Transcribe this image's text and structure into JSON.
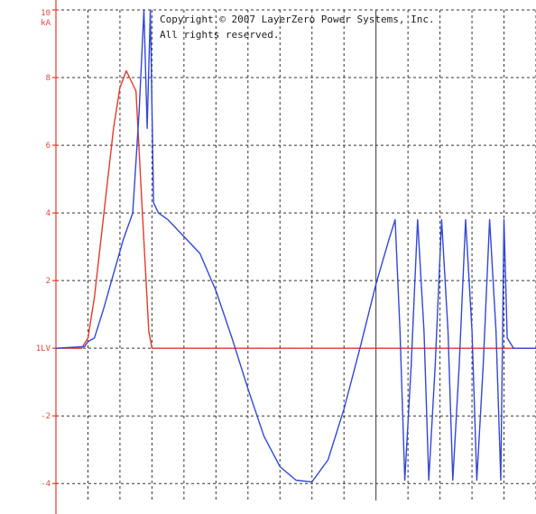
{
  "copyright": {
    "line1": "Copyright © 2007 LayerZero Power Systems, Inc.",
    "line2": "All rights reserved."
  },
  "colors": {
    "voltage": "#e53a2c",
    "current": "#3447d6",
    "grid": "#333333",
    "tick_labels": "#e0493e"
  },
  "chart_data": {
    "type": "line",
    "title": "",
    "xlabel": "",
    "ylabel": "kA",
    "ylim": [
      -4.5,
      10
    ],
    "xlim": [
      0,
      15
    ],
    "grid": true,
    "y_tick_labels": [
      {
        "value": 10,
        "label": "10"
      },
      {
        "value": 8,
        "label": "8"
      },
      {
        "value": 6,
        "label": "6"
      },
      {
        "value": 4,
        "label": "4"
      },
      {
        "value": 2,
        "label": "2"
      },
      {
        "value": 0,
        "label": "1LV"
      },
      {
        "value": -2,
        "label": "-2"
      },
      {
        "value": -4,
        "label": "-4"
      }
    ],
    "unit_label": "kA",
    "series": [
      {
        "color": "#e53a2c",
        "x": [
          0,
          0.8,
          1.0,
          1.2,
          1.5,
          1.8,
          2.0,
          2.2,
          2.5,
          2.7,
          2.9,
          3.0,
          3.2,
          15
        ],
        "y": [
          0,
          0,
          0.3,
          1.5,
          4.0,
          6.5,
          7.7,
          8.2,
          7.6,
          4.0,
          0.5,
          0,
          0,
          0
        ]
      },
      {
        "color": "#3447d6",
        "x": [
          0,
          0.9,
          1.0,
          1.2,
          1.5,
          1.8,
          2.1,
          2.4,
          2.6,
          2.75,
          2.85,
          2.95,
          3.05,
          3.2,
          3.5,
          4.0,
          4.5,
          5.0,
          5.5,
          6.0,
          6.5,
          7.0,
          7.5,
          8.0,
          8.5,
          9.0,
          9.5,
          10.0,
          10.4,
          10.6,
          10.75,
          10.9,
          11.1,
          11.3,
          11.5,
          11.65,
          11.85,
          12.05,
          12.25,
          12.4,
          12.6,
          12.8,
          13.0,
          13.15,
          13.35,
          13.55,
          13.75,
          13.9,
          14.0,
          14.1,
          14.3,
          15
        ],
        "y": [
          0,
          0.05,
          0.2,
          0.3,
          1.2,
          2.2,
          3.2,
          4.0,
          7.0,
          10.0,
          6.5,
          10.0,
          4.3,
          4.0,
          3.8,
          3.3,
          2.8,
          1.7,
          0.3,
          -1.2,
          -2.6,
          -3.5,
          -3.9,
          -3.95,
          -3.3,
          -1.8,
          0,
          1.9,
          3.2,
          3.8,
          0.5,
          -3.9,
          -0.5,
          3.8,
          0.5,
          -3.9,
          -0.5,
          3.8,
          0.5,
          -3.9,
          -0.5,
          3.8,
          0.5,
          -3.9,
          -0.5,
          3.8,
          0.5,
          -3.9,
          3.8,
          0.3,
          0,
          0
        ]
      }
    ]
  }
}
